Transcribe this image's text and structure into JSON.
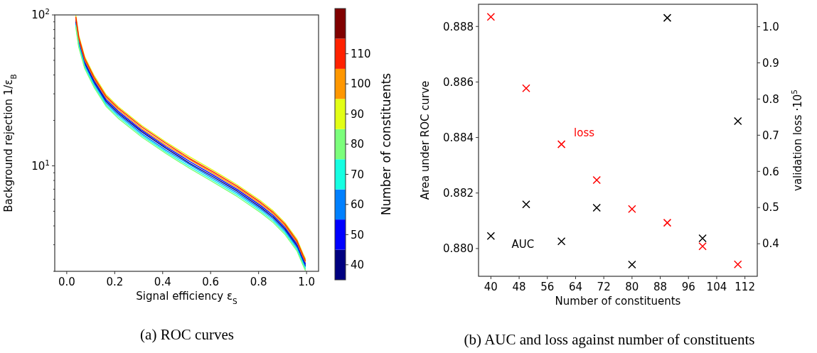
{
  "chart_data": [
    {
      "type": "line",
      "xlabel": "Signal efficiency ε$_{S}$",
      "ylabel": "Background rejection 1/ε$_{B}$",
      "clabel": "Number of constituents",
      "log": "y",
      "grid": false,
      "line_style": "solid",
      "marker": "none",
      "annotations": [
        "(a) ROC curves"
      ],
      "xlim": [
        -0.05,
        1.05
      ],
      "xticks": [
        {
          "value": 0,
          "label": "0.0"
        },
        0.2,
        0.4,
        0.6,
        0.8,
        {
          "value": 1,
          "label": "1.0"
        }
      ],
      "ylim": [
        2,
        100
      ],
      "yticks": [
        {
          "value": 100,
          "label": "10$^{2}$"
        },
        {
          "value": 10,
          "label": "10$^{1}$"
        },
        {
          "value": 2,
          "label": null
        },
        {
          "value": 3,
          "label": null
        },
        {
          "value": 4,
          "label": null
        },
        {
          "value": 5,
          "label": null
        },
        {
          "value": 6,
          "label": null
        },
        {
          "value": 7,
          "label": null
        },
        {
          "value": 8,
          "label": null
        },
        {
          "value": 9,
          "label": null
        },
        {
          "value": 20,
          "label": null
        },
        {
          "value": 30,
          "label": null
        },
        {
          "value": 40,
          "label": null
        },
        {
          "value": 50,
          "label": null
        },
        {
          "value": 60,
          "label": null
        },
        {
          "value": 70,
          "label": null
        },
        {
          "value": 80,
          "label": null
        },
        {
          "value": 90,
          "label": null
        }
      ],
      "clim": [
        35,
        125
      ],
      "cticks": [
        40,
        50,
        60,
        70,
        80,
        90,
        100,
        110
      ],
      "x": [
        0.038,
        0.05,
        0.075,
        0.114,
        0.164,
        0.214,
        0.313,
        0.413,
        0.512,
        0.612,
        0.711,
        0.811,
        0.861,
        0.91,
        0.96,
        0.985,
        0.995
      ],
      "series": [
        {
          "color": "#000080",
          "values": [
            89.7,
            66.3,
            47.8,
            35.9,
            26.8,
            22.4,
            16.8,
            13.1,
            10.4,
            8.43,
            6.79,
            5.27,
            4.56,
            3.8,
            2.95,
            2.38,
            2.19
          ]
        },
        {
          "color": "#0000ff",
          "values": [
            92,
            68,
            49,
            36.8,
            27.5,
            23,
            17.2,
            13.4,
            10.7,
            8.65,
            6.96,
            5.41,
            4.68,
            3.9,
            3.03,
            2.44,
            2.25
          ]
        },
        {
          "color": "#0080ff",
          "values": [
            87.4,
            64.6,
            46.6,
            35.0,
            26.1,
            21.9,
            16.3,
            12.7,
            10.2,
            8.22,
            6.61,
            5.14,
            4.45,
            3.71,
            2.88,
            2.32,
            2.14
          ]
        },
        {
          "color": "#15ffe2",
          "values": [
            85.1,
            62.9,
            45.3,
            34.0,
            25.4,
            21.3,
            15.9,
            12.4,
            9.9,
            8.0,
            6.44,
            5.0,
            4.33,
            3.61,
            2.8,
            2.26,
            2.08
          ]
        },
        {
          "color": "#7dff7a",
          "values": [
            82.8,
            61.2,
            44.1,
            33.1,
            24.8,
            20.7,
            15.5,
            12.1,
            9.63,
            7.79,
            6.26,
            4.87,
            4.21,
            3.51,
            2.73,
            2.2,
            2.03
          ]
        },
        {
          "color": "#e4ff13",
          "values": [
            98.9,
            73.1,
            52.7,
            39.6,
            29.6,
            24.7,
            18.5,
            14.4,
            11.5,
            9.3,
            7.48,
            5.82,
            5.03,
            4.19,
            3.26,
            2.62,
            2.42
          ]
        },
        {
          "color": "#ff9400",
          "values": [
            94.3,
            69.7,
            50.2,
            37.7,
            28.2,
            23.6,
            17.6,
            13.7,
            11.0,
            8.87,
            7.13,
            5.55,
            4.8,
            4.0,
            3.11,
            2.5,
            2.31
          ]
        },
        {
          "color": "#ff1d00",
          "values": [
            96.6,
            71.4,
            51.5,
            38.6,
            28.9,
            24.2,
            18.1,
            14.1,
            11.2,
            9.08,
            7.31,
            5.68,
            4.91,
            4.1,
            3.18,
            2.56,
            2.36
          ]
        }
      ]
    },
    {
      "type": "scatter",
      "xlabel": "Number of constituents",
      "ylabel": "Area under ROC curve",
      "y2label": "validation loss ·10$^{5}$",
      "grid": false,
      "marker": "cross",
      "annotations": [
        "(b) AUC and loss against number of constituents"
      ],
      "x": [
        40,
        50,
        60,
        70,
        80,
        90,
        100,
        110
      ],
      "xlim": [
        36.5,
        115.5
      ],
      "xticks": [
        40,
        48,
        56,
        64,
        72,
        80,
        88,
        96,
        104,
        112
      ],
      "ylim": [
        0.879,
        0.8888
      ],
      "yticks": [
        {
          "value": 0.88,
          "label": "0.880"
        },
        0.882,
        0.884,
        0.886,
        0.888
      ],
      "y2lim": [
        0.31,
        1.062
      ],
      "y2ticks": [
        0.4,
        0.5,
        0.6,
        0.7,
        0.8,
        0.9,
        {
          "value": 1,
          "label": "1.0"
        }
      ],
      "series": [
        {
          "name": "AUC",
          "color": "#000000",
          "values": [
            0.88045,
            0.88159,
            0.88026,
            0.88147,
            0.87942,
            0.88831,
            0.88037,
            0.88459
          ]
        },
        {
          "name": "loss",
          "color": "#ff0000",
          "axis": "y2",
          "values": [
            1.027,
            0.83,
            0.675,
            0.576,
            0.496,
            0.458,
            0.393,
            0.343
          ]
        }
      ]
    }
  ]
}
